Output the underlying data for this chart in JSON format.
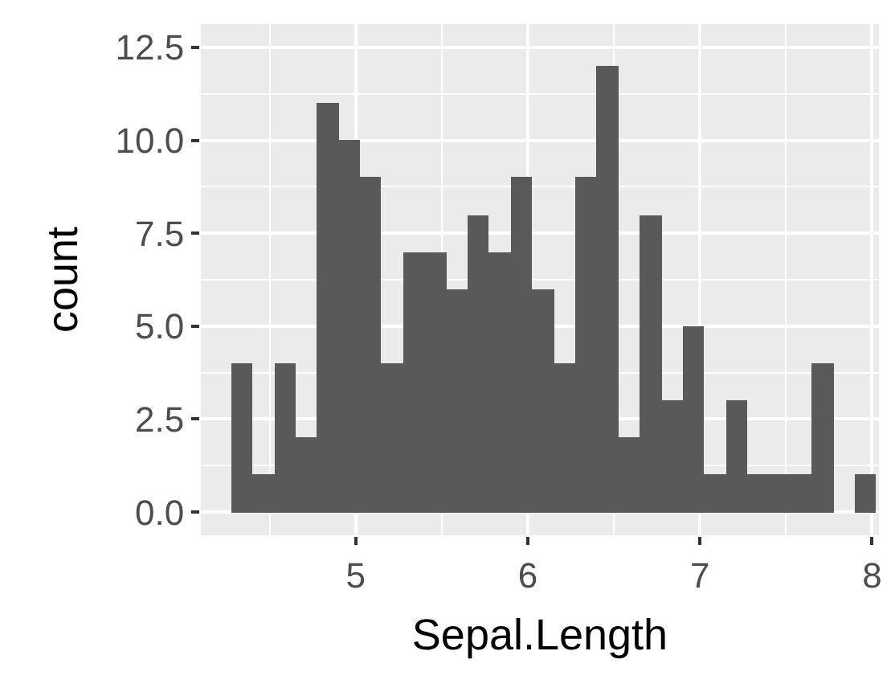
{
  "chart_data": {
    "type": "histogram",
    "xlabel": "Sepal.Length",
    "ylabel": "count",
    "bins": [
      4.275,
      4.4,
      4.525,
      4.65,
      4.775,
      4.9,
      5.025,
      5.15,
      5.275,
      5.4,
      5.525,
      5.65,
      5.775,
      5.9,
      6.025,
      6.15,
      6.275,
      6.4,
      6.525,
      6.65,
      6.775,
      6.9,
      7.025,
      7.15,
      7.275,
      7.4,
      7.525,
      7.65,
      7.775,
      7.9,
      8.025
    ],
    "values": [
      4,
      1,
      4,
      2,
      11,
      10,
      9,
      4,
      7,
      7,
      6,
      8,
      7,
      9,
      6,
      4,
      9,
      12,
      2,
      8,
      3,
      5,
      1,
      3,
      1,
      1,
      1,
      4,
      0,
      1
    ],
    "color": "#595959",
    "xlim": [
      4.1,
      8.04
    ],
    "ylim": [
      -0.625,
      13.125
    ],
    "xticks": [
      5,
      6,
      7,
      8
    ],
    "yticks": [
      {
        "value": 0,
        "label": "0.0"
      },
      {
        "value": 2.5,
        "label": "2.5"
      },
      {
        "value": 5,
        "label": "5.0"
      },
      {
        "value": 7.5,
        "label": "7.5"
      },
      {
        "value": 10,
        "label": "10.0"
      },
      {
        "value": 12.5,
        "label": "12.5"
      }
    ],
    "grid": true
  }
}
